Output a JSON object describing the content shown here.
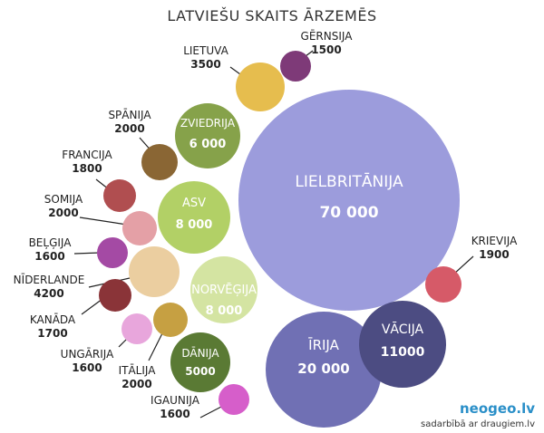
{
  "chart_data": {
    "type": "bubble",
    "title": "LATVIEŠU SKAITS ĀRZEMĒS",
    "bubbles": [
      {
        "label": "LIELBRITĀNIJA",
        "value": "70 000",
        "color": "#9c9cdc"
      },
      {
        "label": "ĪRIJA",
        "value": "20 000",
        "color": "#7070b4"
      },
      {
        "label": "VĀCIJA",
        "value": "11000",
        "color": "#4c4c82"
      },
      {
        "label": "ZVIEDRIJA",
        "value": "6 000",
        "color": "#86a24a"
      },
      {
        "label": "ASV",
        "value": "8 000",
        "color": "#b2d066"
      },
      {
        "label": "NORVĒĢIJA",
        "value": "8 000",
        "color": "#d4e4a2"
      },
      {
        "label": "DĀNIJA",
        "value": "5000",
        "color": "#5a7a34"
      },
      {
        "label": "KRIEVIJA",
        "value": "1900",
        "color": "#d65a68"
      },
      {
        "label": "LIETUVA",
        "value": "3500",
        "color": "#e6bd4e"
      },
      {
        "label": "GĒRNSIJA",
        "value": "1500",
        "color": "#7e3a78"
      },
      {
        "label": "SPĀNIJA",
        "value": "2000",
        "color": "#8a6634"
      },
      {
        "label": "FRANCIJA",
        "value": "1800",
        "color": "#b04e50"
      },
      {
        "label": "SOMIJA",
        "value": "2000",
        "color": "#e4a0a6"
      },
      {
        "label": "BEĻĢIJA",
        "value": "1600",
        "color": "#a44aa4"
      },
      {
        "label": "NĪDERLANDE",
        "value": "4200",
        "color": "#ebcea0"
      },
      {
        "label": "KANĀDA",
        "value": "1700",
        "color": "#8a3438"
      },
      {
        "label": "UNGĀRIJA",
        "value": "1600",
        "color": "#e8a6dc"
      },
      {
        "label": "ITĀLIJA",
        "value": "2000",
        "color": "#c6a042"
      },
      {
        "label": "IGAUNIJA",
        "value": "1600",
        "color": "#d65eca"
      }
    ]
  },
  "brand": {
    "name": "neogeo.lv",
    "sub": "sadarbībā ar draugiem.lv"
  }
}
